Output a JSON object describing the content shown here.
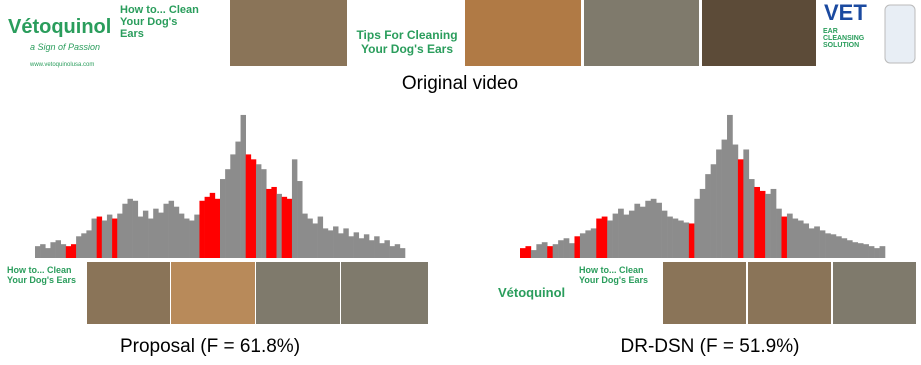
{
  "original": {
    "caption": "Original video",
    "frames": [
      {
        "brand": "Vétoquinol",
        "tagline": "a Sign of Passion",
        "site": "www.vetoquinolusa.com",
        "title": "How to... Clean Your Dog's Ears"
      },
      {
        "title": "Tips For Cleaning Your Dog's Ears"
      },
      {
        "brand": "VET",
        "title": "EAR CLEANSING SOLUTION"
      }
    ]
  },
  "chart_data": [
    {
      "type": "bar",
      "caption": "Proposal (F = 61.8%)",
      "color": "#8c8c8c",
      "selected_color": "#ff0000",
      "selected": [
        6,
        7,
        12,
        15,
        32,
        33,
        34,
        35,
        41,
        42,
        45,
        46,
        48,
        49
      ],
      "ylim": [
        0,
        150
      ],
      "values": [
        12,
        14,
        10,
        16,
        18,
        14,
        12,
        14,
        22,
        25,
        28,
        40,
        42,
        38,
        44,
        40,
        45,
        55,
        60,
        58,
        42,
        48,
        40,
        50,
        46,
        55,
        58,
        52,
        45,
        40,
        38,
        44,
        58,
        62,
        66,
        60,
        80,
        90,
        105,
        118,
        145,
        105,
        100,
        95,
        90,
        70,
        72,
        65,
        62,
        60,
        100,
        78,
        45,
        40,
        35,
        42,
        30,
        28,
        32,
        25,
        30,
        22,
        26,
        20,
        24,
        18,
        22,
        15,
        18,
        12,
        14,
        10
      ],
      "summary": [
        {
          "title": "How to... Clean Your Dog's Ears"
        }
      ]
    },
    {
      "type": "bar",
      "caption": "DR-DSN (F = 51.9%)",
      "color": "#8c8c8c",
      "selected_color": "#ff0000",
      "selected": [
        0,
        1,
        5,
        10,
        14,
        15,
        31,
        40,
        43,
        44,
        48
      ],
      "ylim": [
        0,
        150
      ],
      "values": [
        10,
        12,
        8,
        14,
        16,
        12,
        14,
        18,
        20,
        15,
        22,
        25,
        28,
        30,
        40,
        42,
        38,
        45,
        50,
        44,
        48,
        55,
        52,
        58,
        60,
        56,
        48,
        42,
        40,
        38,
        36,
        35,
        60,
        70,
        85,
        95,
        110,
        120,
        145,
        115,
        100,
        110,
        80,
        72,
        68,
        65,
        70,
        50,
        42,
        45,
        40,
        38,
        35,
        30,
        32,
        28,
        25,
        24,
        22,
        20,
        18,
        16,
        15,
        14,
        12,
        10,
        12
      ],
      "summary": [
        {
          "brand": "Vétoquinol"
        },
        {
          "title": "How to... Clean Your Dog's Ears"
        }
      ]
    }
  ]
}
